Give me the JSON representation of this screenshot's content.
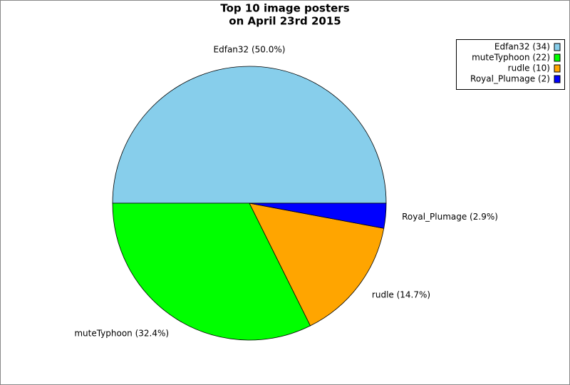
{
  "chart_data": {
    "type": "pie",
    "title": [
      "Top 10 image posters",
      "on April 23rd 2015"
    ],
    "series": [
      {
        "name": "Edfan32",
        "color": "#87ceeb"
      },
      {
        "name": "muteTyphoon",
        "color": "#00ff00"
      },
      {
        "name": "rudle",
        "color": "#ffa500"
      },
      {
        "name": "Royal_Plumage",
        "color": "#0000ff"
      }
    ],
    "values": [
      34,
      22,
      10,
      2
    ],
    "value_labels": [
      "Edfan32 (34)",
      "muteTyphoon (22)",
      "rudle (10)",
      "Royal_Plumage (2)"
    ],
    "percentages": [
      50.0,
      32.4,
      14.7,
      2.9
    ],
    "percentage_labels": [
      "Edfan32 (50.0%)",
      "muteTyphoon (32.4%)",
      "rudle (14.7%)",
      "Royal_Plumage (2.9%)"
    ],
    "legend": "top-right"
  }
}
